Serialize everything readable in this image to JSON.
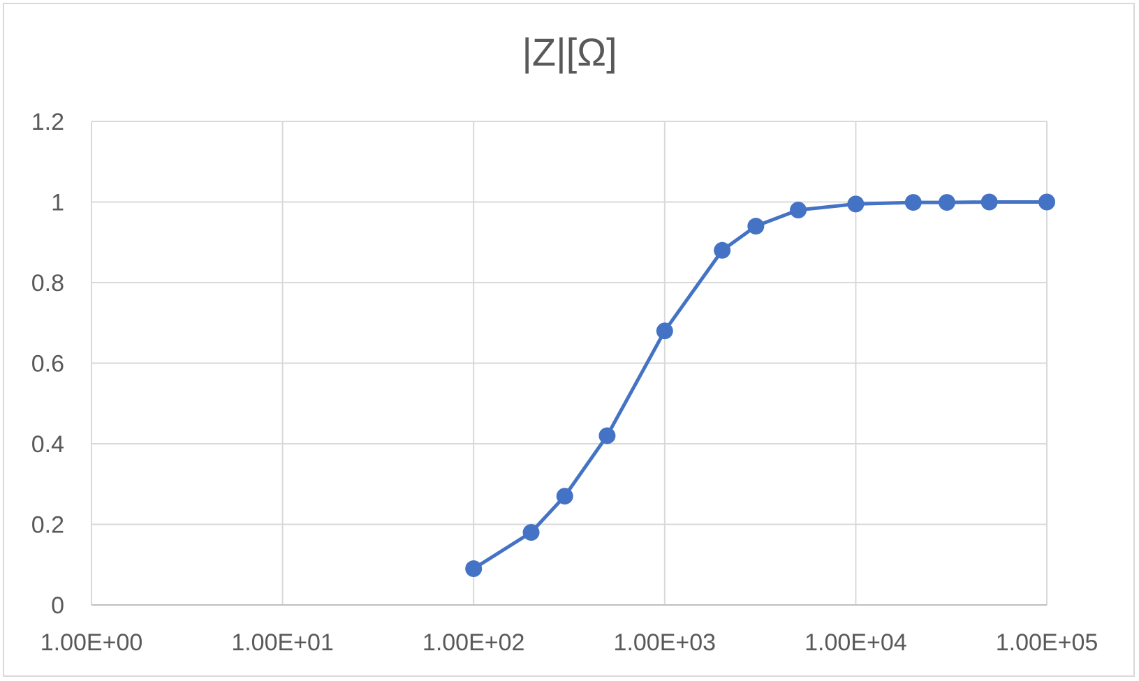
{
  "chart_data": {
    "type": "line",
    "title": "|Z|[Ω]",
    "xlabel": "",
    "ylabel": "",
    "x_scale": "log",
    "xlim": [
      1,
      100000
    ],
    "ylim": [
      0,
      1.2
    ],
    "x_ticks": [
      1,
      10,
      100,
      1000,
      10000,
      100000
    ],
    "x_tick_labels": [
      "1.00E+00",
      "1.00E+01",
      "1.00E+02",
      "1.00E+03",
      "1.00E+04",
      "1.00E+05"
    ],
    "y_ticks": [
      0,
      0.2,
      0.4,
      0.6,
      0.8,
      1,
      1.2
    ],
    "y_tick_labels": [
      "0",
      "0.2",
      "0.4",
      "0.6",
      "0.8",
      "1",
      "1.2"
    ],
    "grid": true,
    "legend": "none",
    "series": [
      {
        "color": "#4472c4",
        "x": [
          100,
          200,
          300,
          500,
          1000,
          2000,
          3000,
          5000,
          10000,
          20000,
          30000,
          50000,
          100000
        ],
        "y": [
          0.09,
          0.18,
          0.27,
          0.42,
          0.68,
          0.88,
          0.94,
          0.98,
          0.995,
          0.999,
          0.999,
          1.0,
          1.0
        ]
      }
    ]
  }
}
